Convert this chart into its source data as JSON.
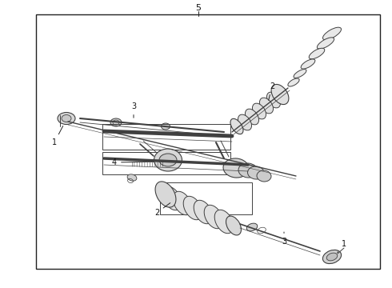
{
  "bg_color": "#ffffff",
  "line_color": "#404040",
  "border_color": "#222222",
  "fig_width": 4.9,
  "fig_height": 3.6,
  "dpi": 100
}
